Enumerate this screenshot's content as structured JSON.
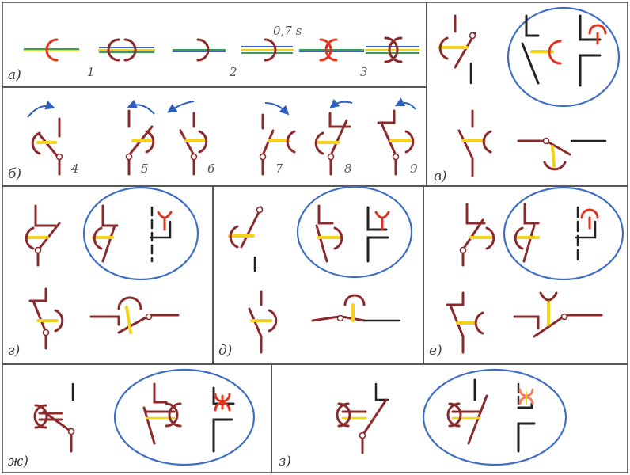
{
  "panels": {
    "a": {
      "letter": "а)",
      "numbers": [
        "1",
        "2",
        "3"
      ],
      "time_label": "0,7 s"
    },
    "b": {
      "letter": "б)",
      "numbers": [
        "4",
        "5",
        "6",
        "7",
        "8",
        "9"
      ]
    },
    "v": {
      "letter": "в)"
    },
    "g": {
      "letter": "г)"
    },
    "d": {
      "letter": "д)"
    },
    "e": {
      "letter": "е)"
    },
    "zh": {
      "letter": "ж)"
    },
    "z": {
      "letter": "з)"
    }
  },
  "colors": {
    "frame": "#4a4a4a",
    "bone": "#8b2a2a",
    "dark_bone": "#222222",
    "highlight_red": "#e0321f",
    "mid_yellow": "#f5d31c",
    "oval_blue": "#3f6fc4",
    "arrow_blue": "#2f5fbf"
  }
}
